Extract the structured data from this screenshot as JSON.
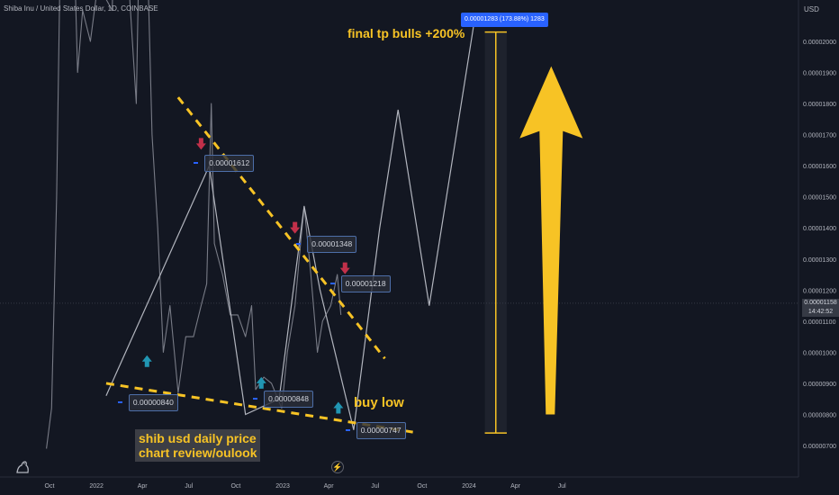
{
  "chart_data": {
    "type": "line",
    "title": "Shiba Inu / United States Dollar, 1D, COINBASE",
    "currency": "USD",
    "time_axis": [
      "Oct",
      "2022",
      "Apr",
      "Jul",
      "Oct",
      "2023",
      "Apr",
      "Jul",
      "Oct",
      "2024",
      "Apr",
      "Jul"
    ],
    "price_axis": [
      "0.00002000",
      "0.00001900",
      "0.00001800",
      "0.00001700",
      "0.00001600",
      "0.00001500",
      "0.00001400",
      "0.00001300",
      "0.00001200",
      "0.00001100",
      "0.00001000",
      "0.00000900",
      "0.00000800",
      "0.00000700"
    ],
    "ylim": [
      6.5e-06,
      2.15e-05
    ],
    "current_price": "0.00001158",
    "countdown": "14:42:52",
    "price_history": [
      [
        "2021-09-25",
        6.9e-06
      ],
      [
        "2021-10-05",
        8.2e-06
      ],
      [
        "2021-10-15",
        1.5e-05
      ],
      [
        "2021-10-25",
        2.6e-05
      ],
      [
        "2021-11-10",
        2.8e-05
      ],
      [
        "2021-11-25",
        1.9e-05
      ],
      [
        "2021-12-05",
        2.1e-05
      ],
      [
        "2021-12-20",
        2e-05
      ],
      [
        "2022-01-05",
        2.2e-05
      ],
      [
        "2022-01-15",
        2.15e-05
      ],
      [
        "2022-02-01",
        2.1e-05
      ],
      [
        "2022-02-15",
        3.3e-05
      ],
      [
        "2022-03-01",
        2.3e-05
      ],
      [
        "2022-03-20",
        1.8e-05
      ],
      [
        "2022-04-01",
        2.9e-05
      ],
      [
        "2022-04-20",
        1.7e-05
      ],
      [
        "2022-05-01",
        1.4e-05
      ],
      [
        "2022-05-12",
        1e-05
      ],
      [
        "2022-05-25",
        1.15e-05
      ],
      [
        "2022-06-10",
        8.7e-06
      ],
      [
        "2022-06-25",
        1.05e-05
      ],
      [
        "2022-07-10",
        1.05e-05
      ],
      [
        "2022-07-25",
        1.15e-05
      ],
      [
        "2022-08-05",
        1.22e-05
      ],
      [
        "2022-08-14",
        1.8e-05
      ],
      [
        "2022-08-20",
        1.35e-05
      ],
      [
        "2022-09-05",
        1.25e-05
      ],
      [
        "2022-09-20",
        1.12e-05
      ],
      [
        "2022-10-05",
        1.12e-05
      ],
      [
        "2022-10-20",
        1.05e-05
      ],
      [
        "2022-11-01",
        1.15e-05
      ],
      [
        "2022-11-09",
        8.8e-06
      ],
      [
        "2022-11-25",
        9.2e-06
      ],
      [
        "2022-12-10",
        9e-06
      ],
      [
        "2022-12-30",
        8.2e-06
      ],
      [
        "2023-01-10",
        1e-05
      ],
      [
        "2023-01-25",
        1.15e-05
      ],
      [
        "2023-02-05",
        1.35e-05
      ],
      [
        "2023-02-12",
        1.47e-05
      ],
      [
        "2023-02-25",
        1.25e-05
      ],
      [
        "2023-03-10",
        1e-05
      ],
      [
        "2023-03-20",
        1.1e-05
      ],
      [
        "2023-04-05",
        1.15e-05
      ],
      [
        "2023-04-18",
        1.25e-05
      ],
      [
        "2023-04-25",
        1.12e-05
      ]
    ],
    "projection_path": [
      [
        "2022-01-20",
        8.6e-06
      ],
      [
        "2022-08-10",
        1.6e-05
      ],
      [
        "2022-10-20",
        8e-06
      ],
      [
        "2022-12-25",
        8.5e-06
      ],
      [
        "2023-02-12",
        1.47e-05
      ],
      [
        "2023-03-15",
        1.2e-05
      ],
      [
        "2023-05-20",
        7.5e-06
      ],
      [
        "2023-07-10",
        1.4e-05
      ],
      [
        "2023-08-15",
        1.78e-05
      ],
      [
        "2023-10-15",
        1.15e-05
      ],
      [
        "2024-01-10",
        2.05e-05
      ]
    ],
    "resistance_line": [
      [
        "2022-06-10",
        1.82e-05
      ],
      [
        "2023-07-20",
        9.8e-06
      ]
    ],
    "support_line": [
      [
        "2022-01-20",
        9e-06
      ],
      [
        "2023-09-25",
        7.4e-06
      ]
    ],
    "target_range": {
      "x_start": "2024-02-01",
      "x_end": "2024-03-15",
      "low": 7.4e-06,
      "high": 2.03e-05
    },
    "big_arrow": {
      "x": "2024-06-10",
      "from": 8e-06,
      "to": 1.92e-05
    },
    "price_labels": [
      {
        "text": "0.00001612",
        "x": "2022-08-01",
        "y": 1.61e-05
      },
      {
        "text": "0.00001348",
        "x": "2023-02-18",
        "y": 1.35e-05
      },
      {
        "text": "0.00001218",
        "x": "2023-04-25",
        "y": 1.22e-05
      },
      {
        "text": "0.00000840",
        "x": "2022-03-05",
        "y": 8.4e-06
      },
      {
        "text": "0.00000848",
        "x": "2022-11-25",
        "y": 8.5e-06
      },
      {
        "text": "0.00000747",
        "x": "2023-05-25",
        "y": 7.5e-06
      }
    ],
    "down_arrows": [
      {
        "x": "2022-07-25",
        "y": 1.66e-05
      },
      {
        "x": "2023-01-25",
        "y": 1.39e-05
      },
      {
        "x": "2023-05-03",
        "y": 1.26e-05
      }
    ],
    "up_arrows": [
      {
        "x": "2022-04-10",
        "y": 9.7e-06
      },
      {
        "x": "2022-11-20",
        "y": 9e-06
      },
      {
        "x": "2023-04-20",
        "y": 8.2e-06
      }
    ],
    "target_label": "0.00001283 (173.88%) 1283",
    "annotations": {
      "final_tp": "final tp bulls +200%",
      "buy_low": "buy low",
      "review_line1": "shib usd daily price",
      "review_line2": "chart review/oulook"
    },
    "colors": {
      "background": "#131722",
      "price_line": "#787b86",
      "projection": "#b2b5be",
      "trendline": "#f7c325",
      "down_arrow": "#c2304a",
      "up_arrow": "#2196b3",
      "label_border": "#4d6ea8",
      "target_tag": "#2962ff",
      "annotation_text": "#f7c325"
    }
  }
}
